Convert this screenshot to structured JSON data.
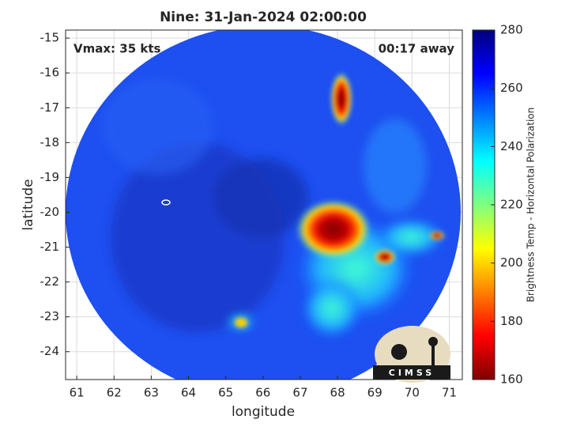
{
  "chart_data": {
    "type": "heatmap",
    "title": "Nine: 31-Jan-2024 02:00:00",
    "xlabel": "longitude",
    "ylabel": "latitude",
    "annotations": [
      "Vmax: 35 kts",
      "00:17 away"
    ],
    "xlim": [
      60.7,
      71.35
    ],
    "ylim": [
      -24.8,
      -14.77
    ],
    "xticks": [
      61,
      62,
      63,
      64,
      65,
      66,
      67,
      68,
      69,
      70,
      71
    ],
    "yticks": [
      -24,
      -23,
      -22,
      -21,
      -20,
      -19,
      -18,
      -17,
      -16,
      -15
    ],
    "grid": true,
    "colorbar": {
      "label": "Brightness Temp - Horizontal Polarization",
      "lim": [
        160,
        280
      ],
      "ticks": [
        160,
        180,
        200,
        220,
        240,
        260,
        280
      ]
    },
    "logo_text": "CIMSS"
  }
}
